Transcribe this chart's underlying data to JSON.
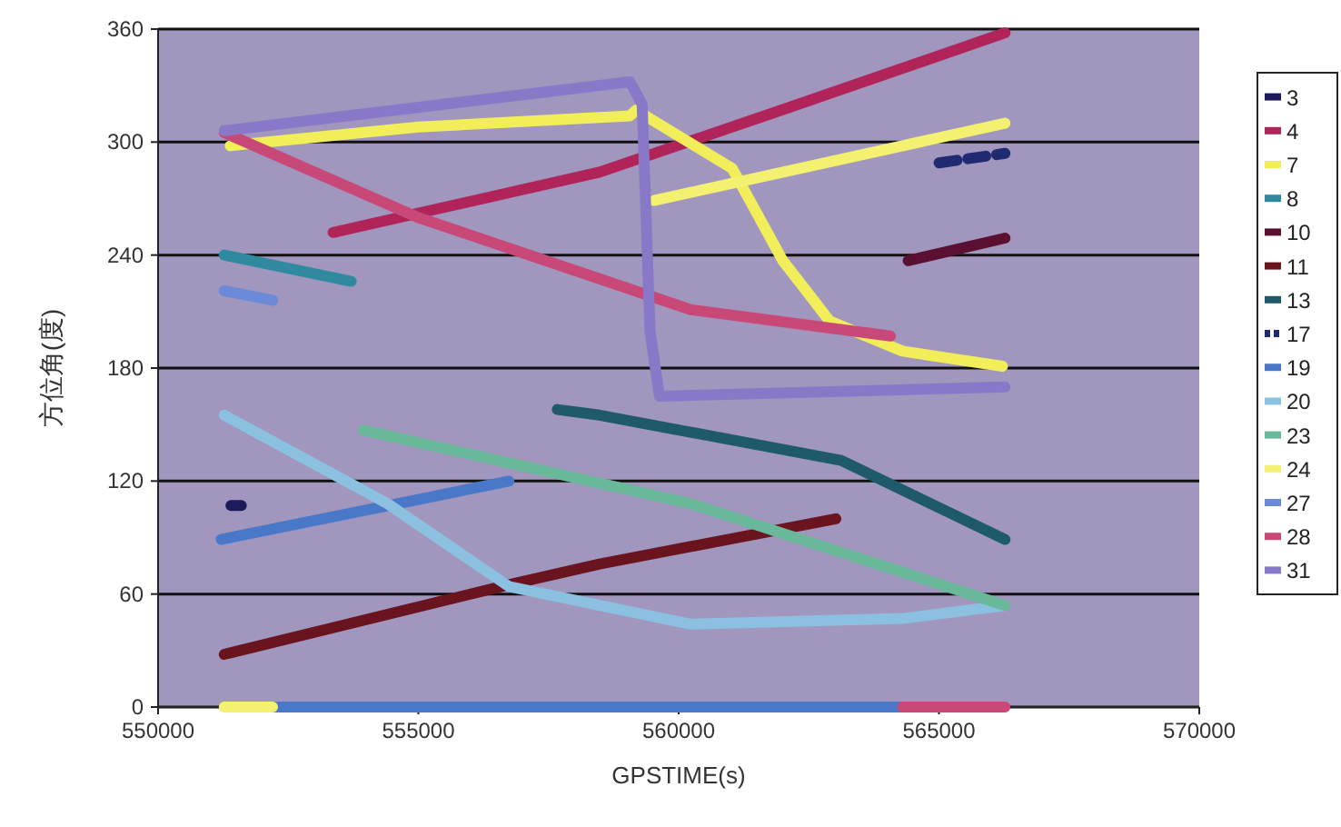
{
  "chart_data": {
    "type": "line",
    "xlabel": "GPSTIME(s)",
    "ylabel": "方位角(度)",
    "xlim": [
      550000,
      570000
    ],
    "xticks": [
      550000,
      555000,
      560000,
      565000,
      570000
    ],
    "ylim": [
      0,
      360
    ],
    "yticks": [
      0,
      60,
      120,
      180,
      240,
      300,
      360
    ],
    "grid": "y",
    "legend": "right",
    "series": [
      {
        "name": "3",
        "color": "#1c1a5a",
        "x": [
          551400,
          551600
        ],
        "values": [
          107,
          107
        ]
      },
      {
        "name": "4",
        "color": "#b0245a",
        "x": [
          553360,
          558480,
          561970,
          566270
        ],
        "values": [
          252,
          284,
          317,
          358
        ]
      },
      {
        "name": "7",
        "color": "#f2ee5a",
        "x": [
          551385,
          555000,
          559064,
          559180,
          561030,
          562000,
          562900,
          564300,
          566220
        ],
        "values": [
          298,
          308,
          314,
          317,
          286,
          237,
          205,
          189,
          181
        ]
      },
      {
        "name": "8",
        "color": "#2f8aa0",
        "x": [
          551270,
          553710
        ],
        "values": [
          240,
          226
        ]
      },
      {
        "name": "10",
        "color": "#5a1030",
        "x": [
          564410,
          566270
        ],
        "values": [
          237,
          249
        ]
      },
      {
        "name": "11",
        "color": "#6a1420",
        "x": [
          551270,
          556740,
          558480,
          563020
        ],
        "values": [
          28,
          65,
          76,
          100
        ]
      },
      {
        "name": "13",
        "color": "#1f5a6a",
        "x": [
          557670,
          558480,
          563120,
          566270
        ],
        "values": [
          158,
          155,
          131,
          89
        ]
      },
      {
        "name": "17",
        "color": "#202a70",
        "line_style": "dashed",
        "x": [
          565000,
          566270
        ],
        "values": [
          289,
          294
        ]
      },
      {
        "name": "19",
        "color": "#4a78c8",
        "x": [
          551210,
          556740,
          null,
          552200,
          564300
        ],
        "values": [
          89,
          120,
          null,
          0,
          0
        ]
      },
      {
        "name": "20",
        "color": "#8cc0e0",
        "x": [
          551270,
          554410,
          556740,
          560230,
          564300,
          566270
        ],
        "values": [
          155,
          108,
          64,
          44,
          47,
          54
        ]
      },
      {
        "name": "23",
        "color": "#6ab89a",
        "x": [
          553940,
          560230,
          566270
        ],
        "values": [
          147,
          108,
          54
        ]
      },
      {
        "name": "24",
        "color": "#f4f070",
        "x": [
          559530,
          566270,
          null,
          551270,
          552200
        ],
        "values": [
          269,
          310,
          null,
          0,
          0
        ]
      },
      {
        "name": "27",
        "color": "#6a8ad8",
        "x": [
          551270,
          552200
        ],
        "values": [
          221,
          216
        ]
      },
      {
        "name": "28",
        "color": "#c84878",
        "x": [
          551270,
          554990,
          560230,
          564070,
          null,
          564300,
          566270
        ],
        "values": [
          305,
          260,
          211,
          197,
          null,
          0,
          0
        ]
      },
      {
        "name": "31",
        "color": "#8878c8",
        "x": [
          551270,
          559064,
          559300,
          559450,
          559630,
          566265
        ],
        "values": [
          306,
          332,
          320,
          200,
          165,
          170
        ]
      }
    ]
  }
}
